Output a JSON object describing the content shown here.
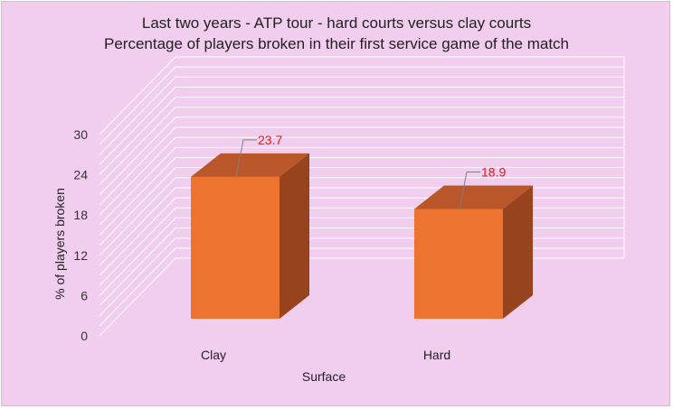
{
  "chart_data": {
    "type": "bar",
    "style": "3d-column",
    "title": "Last two years - ATP tour - hard courts versus clay courts",
    "subtitle": "Percentage of players broken in their first service game of the match",
    "xlabel": "Surface",
    "ylabel": "% of players broken",
    "categories": [
      "Clay",
      "Hard"
    ],
    "values": [
      23.7,
      18.9
    ],
    "data_labels": [
      "23.7",
      "18.9"
    ],
    "ylim": [
      0,
      30
    ],
    "yticks": [
      0,
      6,
      12,
      18,
      24,
      30
    ],
    "grid": true,
    "legend": "none"
  },
  "colors": {
    "background": "#f1cdee",
    "bar_front": "#ed7331",
    "bar_top": "#b9562a",
    "bar_side": "#97441e",
    "gridline": "#ffffff",
    "data_label": "#e81818",
    "leader_line": "#7f7f7f"
  }
}
